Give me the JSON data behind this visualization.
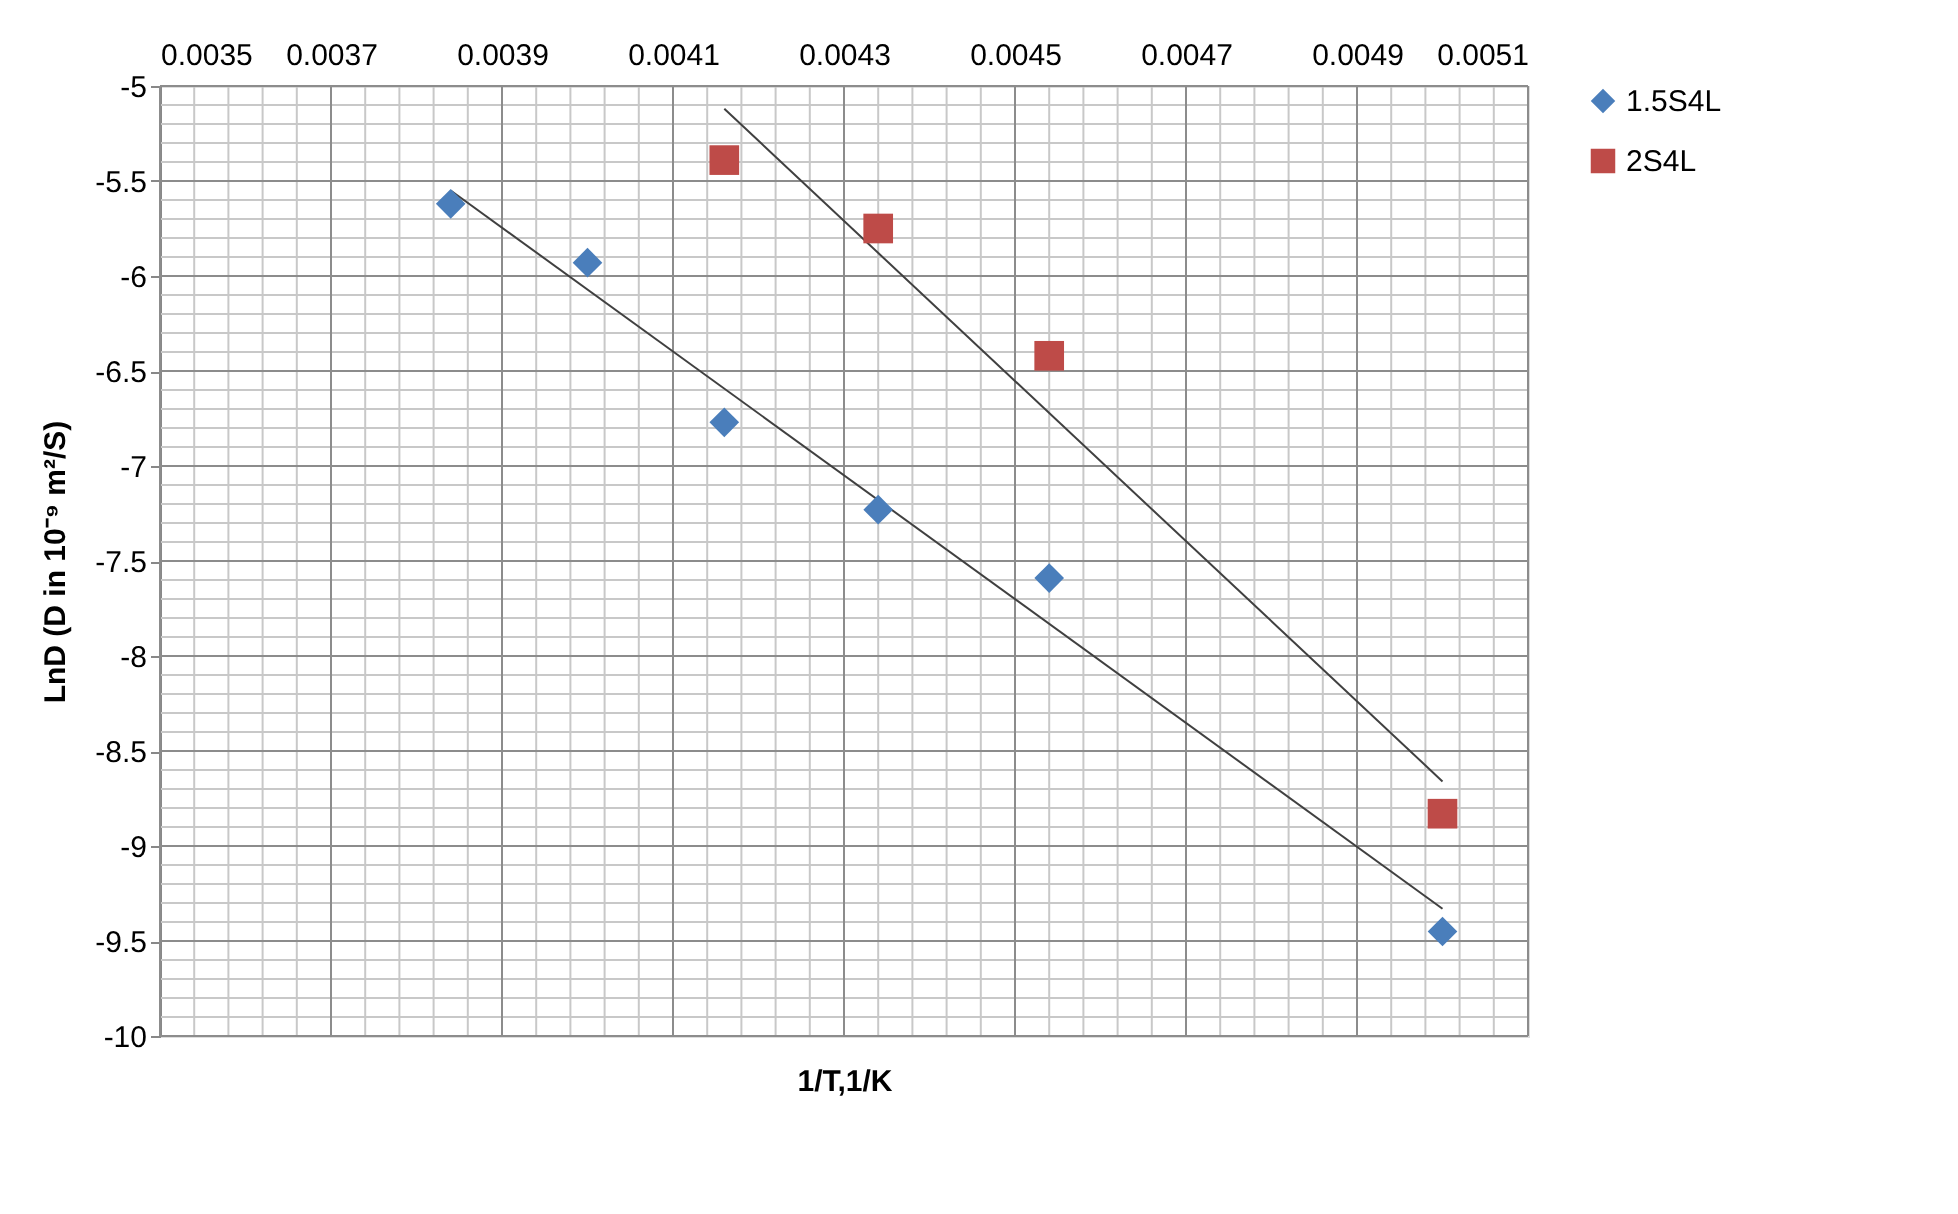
{
  "chart_data": {
    "type": "scatter",
    "xlabel": "1/T,1/K",
    "ylabel": "LnD (D in 10⁻⁹ m²/S)",
    "xlim": [
      0.0035,
      0.0051
    ],
    "xticks": [
      0.0035,
      0.0037,
      0.0039,
      0.0041,
      0.0043,
      0.0045,
      0.0047,
      0.0049,
      0.0051
    ],
    "ylim": [
      -10,
      -5
    ],
    "yticks": [
      -10,
      -9.5,
      -9,
      -8.5,
      -8,
      -7.5,
      -7,
      -6.5,
      -6,
      -5.5,
      -5
    ],
    "grid": true,
    "legend": "right",
    "series": [
      {
        "name": "1.5S4L",
        "color": "#4a7ebb",
        "marker": "diamond",
        "x": [
          0.00384,
          0.004,
          0.00416,
          0.00434,
          0.00454,
          0.005
        ],
        "values": [
          -5.62,
          -5.93,
          -6.77,
          -7.23,
          -7.59,
          -9.45
        ]
      },
      {
        "name": "2S4L",
        "color": "#be4b48",
        "marker": "square",
        "x": [
          0.00416,
          0.00434,
          0.00454,
          0.005
        ],
        "values": [
          -5.39,
          -5.75,
          -6.42,
          -8.83
        ]
      },
      {
        "type": "line",
        "color": "#404040",
        "marker": "none",
        "x": [
          0.00384,
          0.005
        ],
        "values": [
          -5.55,
          -9.33
        ]
      },
      {
        "type": "line",
        "color": "#404040",
        "marker": "none",
        "x": [
          0.00416,
          0.005
        ],
        "values": [
          -5.12,
          -8.66
        ]
      }
    ]
  }
}
